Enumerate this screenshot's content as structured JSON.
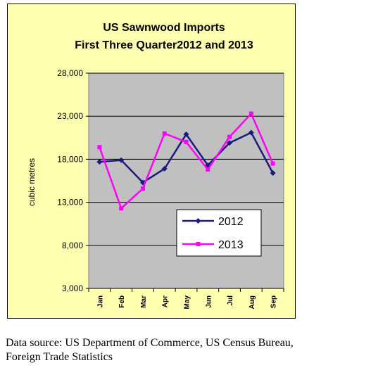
{
  "chart_data": {
    "type": "line",
    "title": "US Sawnwood Imports",
    "subtitle": "First Three Quarter2012 and 2013",
    "xlabel": "",
    "ylabel": "cubic metres",
    "categories": [
      "Jan",
      "Feb",
      "Mar",
      "Apr",
      "May",
      "Jun",
      "Jul",
      "Aug",
      "Sep"
    ],
    "ylim": [
      3000,
      28000
    ],
    "yticks": [
      "3,000",
      "8,000",
      "13,000",
      "18,000",
      "23,000",
      "28,000"
    ],
    "ytick_values": [
      3000,
      8000,
      13000,
      18000,
      23000,
      28000
    ],
    "grid": true,
    "legend_position": "lower-right",
    "series": [
      {
        "name": "2012",
        "color": "#1a1a80",
        "marker": "diamond",
        "values": [
          17700,
          17900,
          15300,
          16900,
          20900,
          17300,
          19900,
          21100,
          16400
        ]
      },
      {
        "name": "2013",
        "color": "#ff00ff",
        "marker": "square",
        "values": [
          19400,
          12300,
          14600,
          21000,
          20000,
          16800,
          20600,
          23300,
          17500
        ]
      }
    ]
  },
  "colors": {
    "panel_background": "#ffffb0",
    "plot_background": "#c0c0c0"
  },
  "source_note": {
    "line1": "Data source: US Department of Commerce, US Census Bureau,",
    "line2": "Foreign Trade Statistics"
  }
}
